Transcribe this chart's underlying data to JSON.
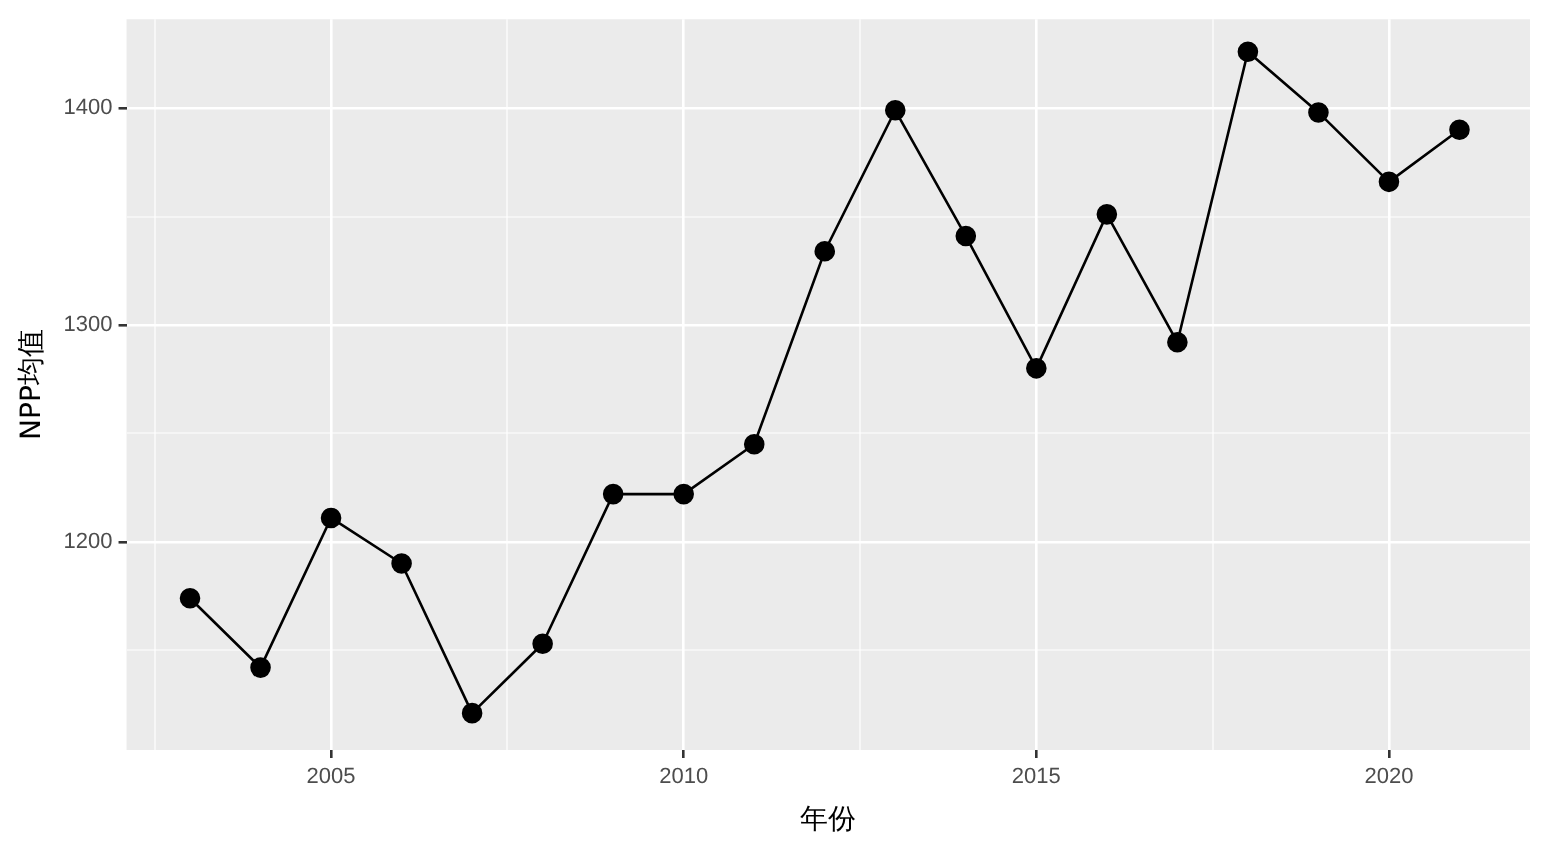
{
  "chart_data": {
    "type": "line",
    "xlabel": "年份",
    "ylabel": "NPP均值",
    "x": [
      2003,
      2004,
      2005,
      2006,
      2007,
      2008,
      2009,
      2010,
      2011,
      2012,
      2013,
      2014,
      2015,
      2016,
      2017,
      2018,
      2019,
      2020,
      2021
    ],
    "series": [
      {
        "color": "#000000",
        "values": [
          1174,
          1142,
          1211,
          1190,
          1121,
          1153,
          1222,
          1222,
          1245,
          1334,
          1399,
          1341,
          1280,
          1351,
          1292,
          1426,
          1398,
          1366,
          1390
        ]
      }
    ],
    "xlim": [
      2002.1,
      2022
    ],
    "xticks": [
      {
        "value": 2002.5,
        "label": null
      },
      2005,
      {
        "value": 2007.5,
        "label": null
      },
      2010,
      {
        "value": 2012.5,
        "label": null
      },
      2015,
      {
        "value": 2017.5,
        "label": null
      },
      2020
    ],
    "ylim": [
      1104,
      1441
    ],
    "yticks": [
      {
        "value": 1150,
        "label": null
      },
      1200,
      {
        "value": 1250,
        "label": null
      },
      1300,
      {
        "value": 1350,
        "label": null
      },
      1400
    ],
    "grid": true,
    "legend": false,
    "marker": "circle",
    "line_style": "solid"
  }
}
